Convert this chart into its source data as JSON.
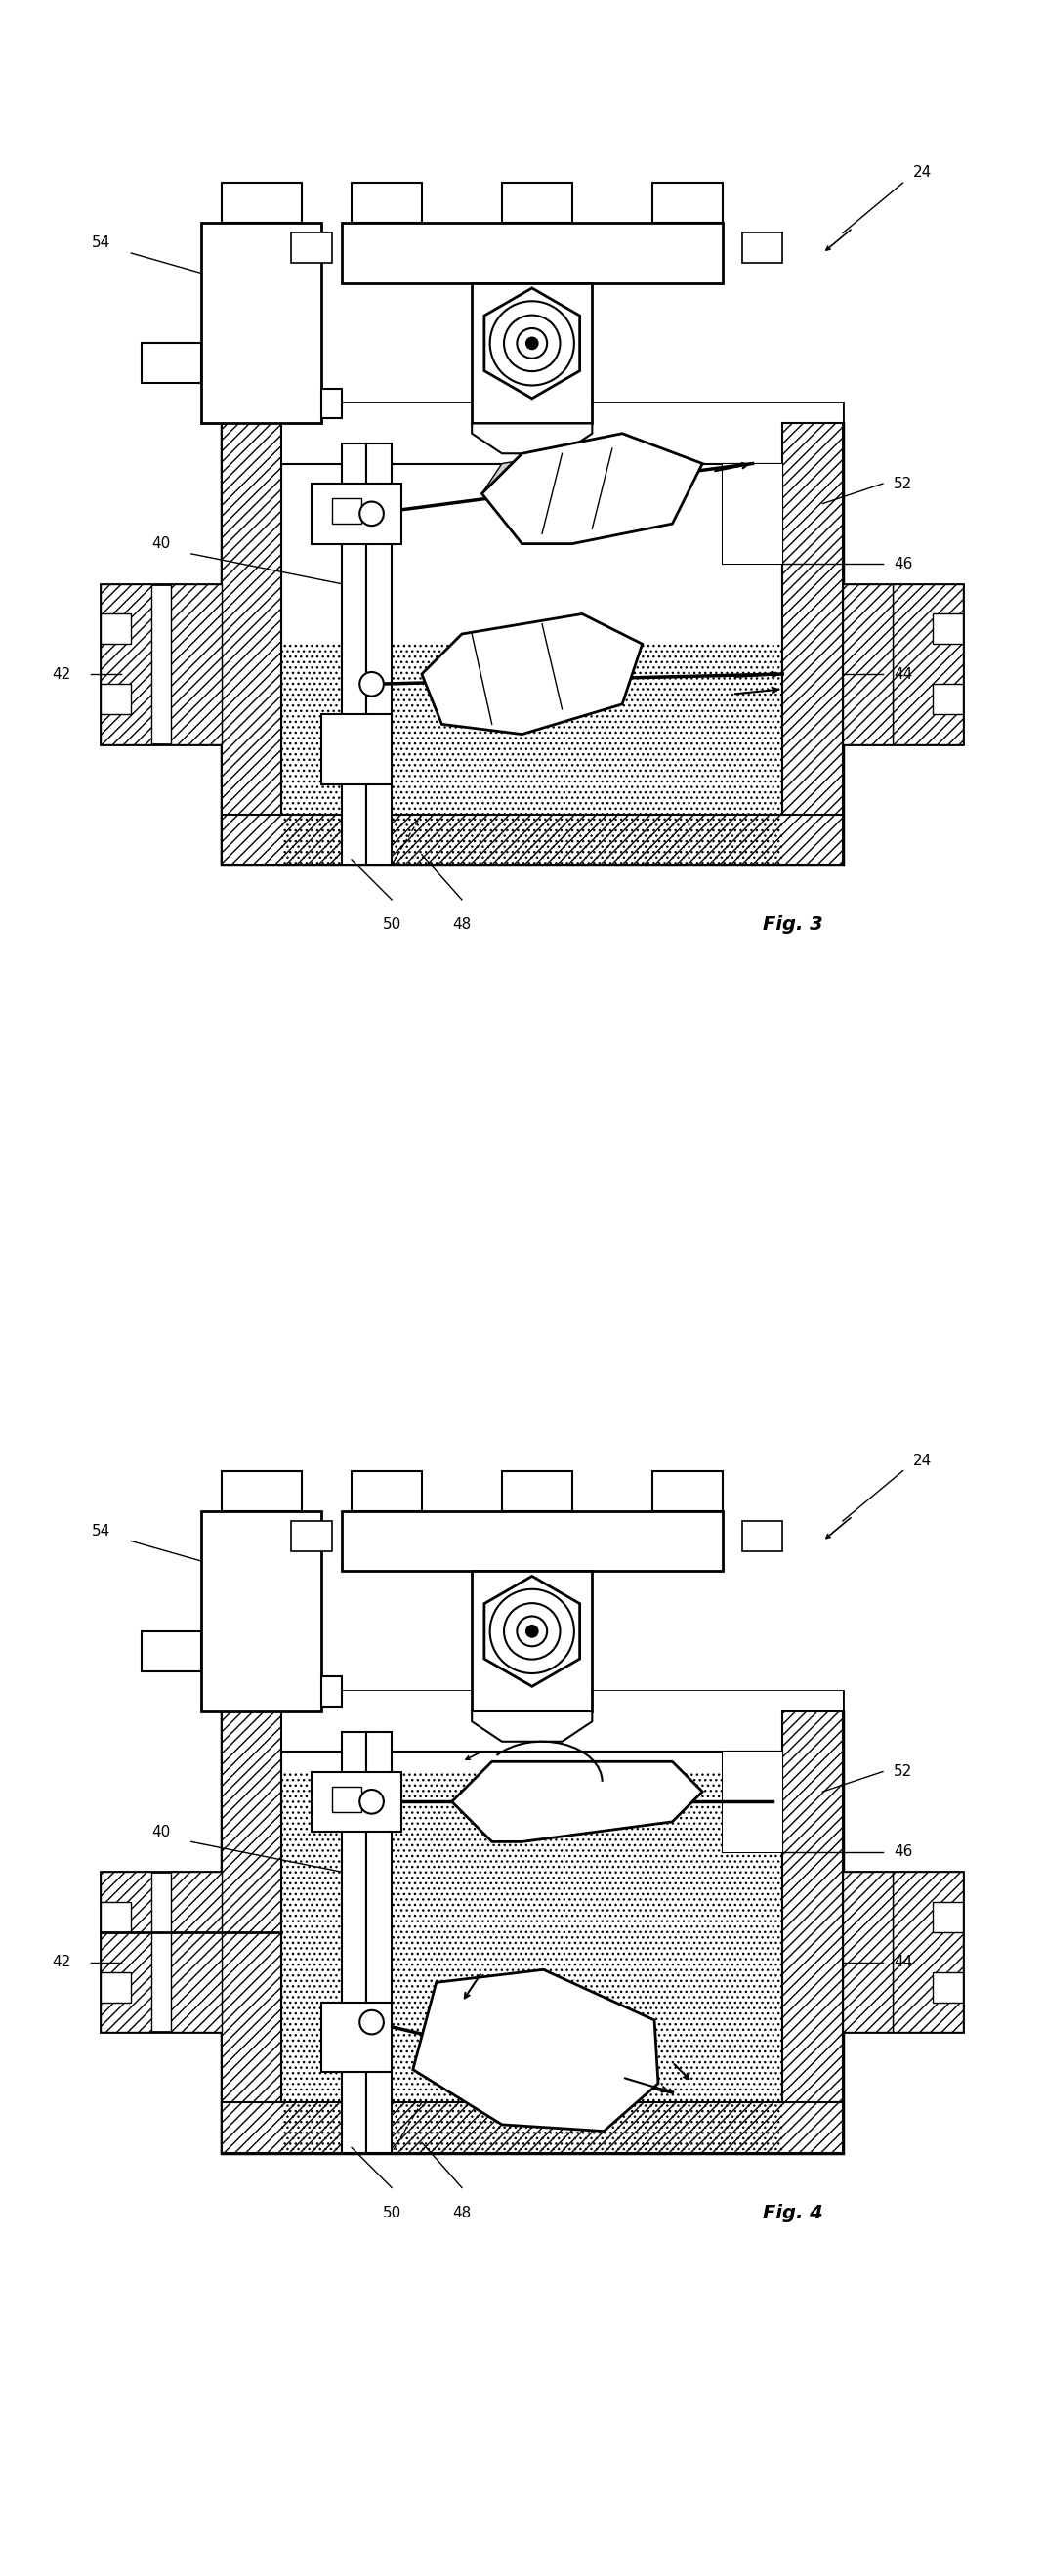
{
  "fig3_label": "Fig. 3",
  "fig4_label": "Fig. 4",
  "label_24": "24",
  "label_54": "54",
  "label_52": "52",
  "label_46": "46",
  "label_44": "44",
  "label_42": "42",
  "label_40": "40",
  "label_50": "50",
  "label_48": "48",
  "bg_color": "#ffffff",
  "lc": "#000000",
  "hatch_dense": "///",
  "hatch_dot": "...",
  "fc_white": "#ffffff",
  "fc_gray_light": "#e8e8e8",
  "fc_gray_mid": "#d0d0d0",
  "fc_fluid": "#dde8f0"
}
